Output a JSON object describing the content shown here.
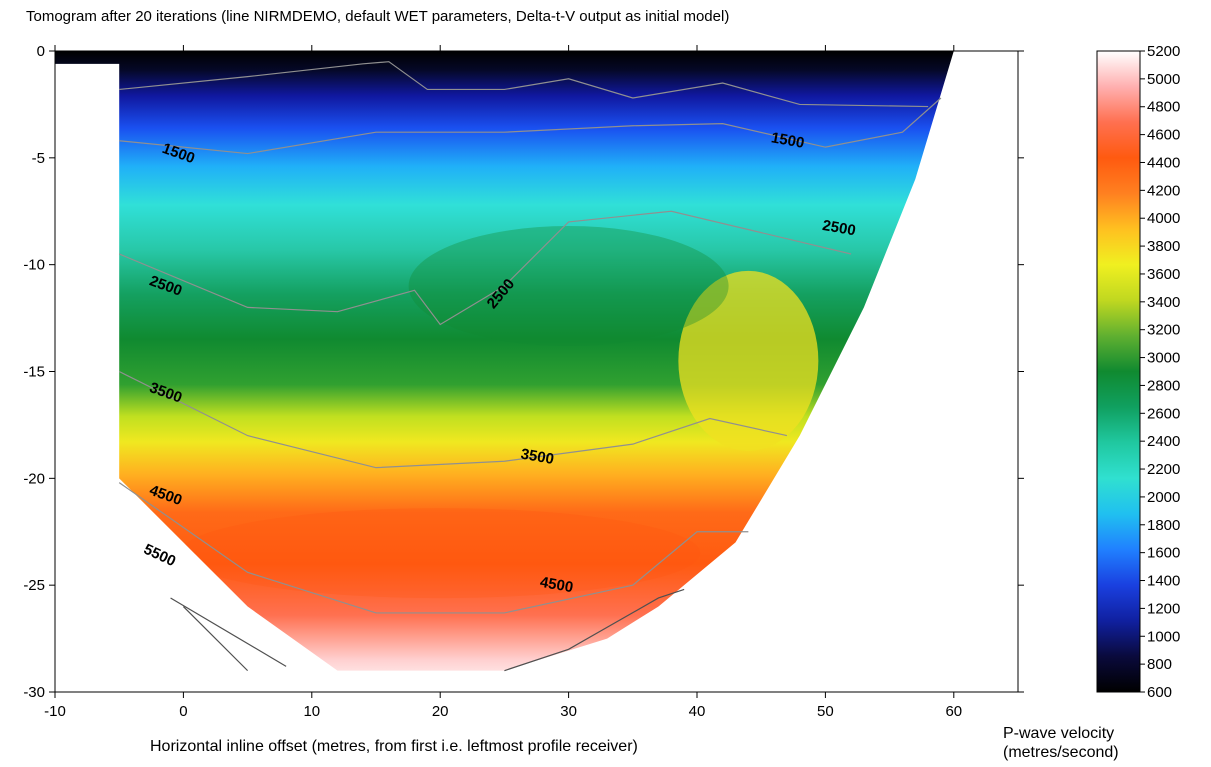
{
  "chart_data": {
    "type": "heatmap",
    "title": "Tomogram after 20 iterations (line NIRMDEMO, default WET parameters, Delta-t-V output as initial model)",
    "xlabel": "Horizontal inline offset (metres, from first i.e. leftmost profile receiver)",
    "colorbar_label": [
      "P-wave velocity",
      "(metres/second)"
    ],
    "xlim": [
      -10,
      65
    ],
    "ylim": [
      -30,
      0
    ],
    "x_ticks": [
      -10,
      0,
      10,
      20,
      30,
      40,
      50,
      60
    ],
    "y_ticks": [
      0,
      -5,
      -10,
      -15,
      -20,
      -25,
      -30
    ],
    "colorbar_range": [
      600,
      5200
    ],
    "colorbar_ticks": [
      5200,
      5000,
      4800,
      4600,
      4400,
      4200,
      4000,
      3800,
      3600,
      3400,
      3200,
      3000,
      2800,
      2600,
      2400,
      2200,
      2000,
      1800,
      1600,
      1400,
      1200,
      1000,
      800,
      600
    ],
    "colormap": [
      "#000000",
      "#0a0a3c",
      "#1020a0",
      "#1a40e0",
      "#2080ff",
      "#20c0f0",
      "#30e0d0",
      "#20c8a0",
      "#10a060",
      "#108a30",
      "#60b030",
      "#c0d820",
      "#f0f020",
      "#ffc020",
      "#ff8020",
      "#ff5a10",
      "#ff7050",
      "#ffb0b0",
      "#ffffff"
    ],
    "contour_levels": [
      1500,
      2500,
      3500,
      4500,
      5500
    ],
    "contour_labels": [
      {
        "text": "1500",
        "x": -0.5,
        "y": -5.0
      },
      {
        "text": "1500",
        "x": 47,
        "y": -4.4
      },
      {
        "text": "2500",
        "x": -1.5,
        "y": -11.2
      },
      {
        "text": "2500",
        "x": 25,
        "y": -11.5
      },
      {
        "text": "2500",
        "x": 51,
        "y": -8.5
      },
      {
        "text": "3500",
        "x": -1.5,
        "y": -16.2
      },
      {
        "text": "3500",
        "x": 27.5,
        "y": -19.2
      },
      {
        "text": "4500",
        "x": -1.5,
        "y": -21.0
      },
      {
        "text": "4500",
        "x": 29,
        "y": -25.2
      },
      {
        "text": "5500",
        "x": -2,
        "y": -23.8
      }
    ],
    "model_outline": {
      "left_x": -5,
      "top_start_x": -10,
      "top_end_x": 60,
      "right_edge": [
        [
          60,
          0
        ],
        [
          57,
          -6
        ],
        [
          53,
          -12
        ],
        [
          48,
          -18
        ],
        [
          43,
          -23
        ],
        [
          37,
          -26
        ],
        [
          33,
          -27.5
        ],
        [
          25,
          -29
        ]
      ],
      "left_edge": [
        [
          -5,
          -0.6
        ],
        [
          -5,
          -20
        ],
        [
          5,
          -26
        ],
        [
          12,
          -29
        ],
        [
          25,
          -29
        ]
      ],
      "bottom": -29
    }
  }
}
